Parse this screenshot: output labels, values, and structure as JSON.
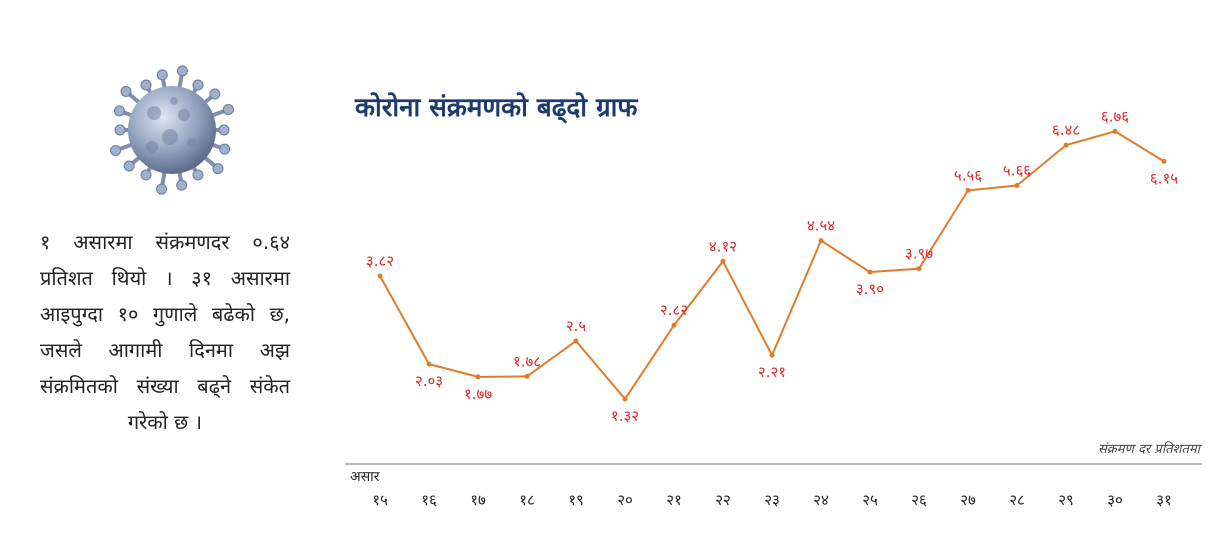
{
  "caption": "१ असारमा संक्रमणदर ०.६४ प्रतिशत थियो । ३१ असारमा आइपुग्दा १० गुणाले बढेको छ, जसले आगामी दिनमा अझ संक्रमितको संख्या बढ्ने संकेत गरेको छ ।",
  "colors": {
    "line": "#e07b2a",
    "value_label": "#d62828",
    "title": "#1f3b6e",
    "axis": "#777777"
  },
  "chart_data": {
    "type": "line",
    "title": "कोरोना संक्रमणको बढ्दो ग्राफ",
    "xlabel": "असार",
    "ylabel": "",
    "annotation": "संक्रमण दर प्रतिशतमा",
    "categories": [
      "१५",
      "१६",
      "१७",
      "१८",
      "१९",
      "२०",
      "२१",
      "२२",
      "२३",
      "२४",
      "२५",
      "२६",
      "२७",
      "२८",
      "२९",
      "३०",
      "३१"
    ],
    "values": [
      3.82,
      2.03,
      1.77,
      1.78,
      2.5,
      1.32,
      2.82,
      4.12,
      2.21,
      4.54,
      3.9,
      3.97,
      5.56,
      5.66,
      6.48,
      6.76,
      6.15
    ],
    "value_labels": [
      "३.८२",
      "२.०३",
      "१.७७",
      "१.७८",
      "२.५",
      "१.३२",
      "२.८२",
      "४.१२",
      "२.२१",
      "४.५४",
      "३.९०",
      "३.९७",
      "५.५६",
      "५.६६",
      "६.४८",
      "६.७६",
      "६.१५"
    ],
    "ylim": [
      0,
      7.6
    ],
    "grid": false,
    "legend": "none"
  }
}
